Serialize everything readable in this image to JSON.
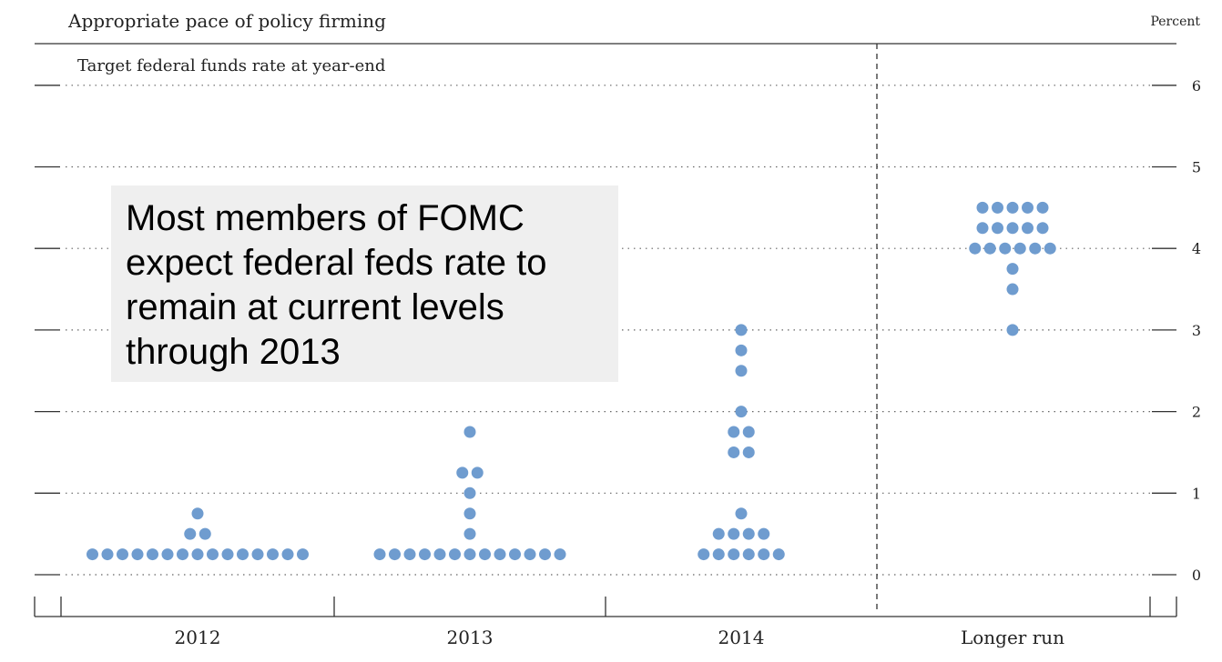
{
  "chart_data": {
    "type": "scatter",
    "title": "Appropriate pace of policy firming",
    "subtitle": "Target federal funds rate at year-end",
    "ylabel": "Percent",
    "ylim": [
      0,
      6.5
    ],
    "yticks": [
      "0",
      "1",
      "2",
      "3",
      "4",
      "5",
      "6"
    ],
    "categories": [
      "2012",
      "2013",
      "2014",
      "Longer run"
    ],
    "grid": true,
    "dot_color": "#6f9ccf",
    "series": [
      {
        "category": "2012",
        "points": [
          {
            "y": 0.25,
            "count": 15
          },
          {
            "y": 0.5,
            "count": 2
          },
          {
            "y": 0.75,
            "count": 1
          }
        ]
      },
      {
        "category": "2013",
        "points": [
          {
            "y": 0.25,
            "count": 13
          },
          {
            "y": 0.5,
            "count": 1
          },
          {
            "y": 0.75,
            "count": 1
          },
          {
            "y": 1.0,
            "count": 1
          },
          {
            "y": 1.25,
            "count": 2
          },
          {
            "y": 1.75,
            "count": 1
          }
        ]
      },
      {
        "category": "2014",
        "points": [
          {
            "y": 0.25,
            "count": 6
          },
          {
            "y": 0.5,
            "count": 4
          },
          {
            "y": 0.75,
            "count": 1
          },
          {
            "y": 1.5,
            "count": 2
          },
          {
            "y": 1.75,
            "count": 2
          },
          {
            "y": 2.0,
            "count": 1
          },
          {
            "y": 2.5,
            "count": 1
          },
          {
            "y": 2.75,
            "count": 1
          },
          {
            "y": 3.0,
            "count": 1
          }
        ]
      },
      {
        "category": "Longer run",
        "points": [
          {
            "y": 3.0,
            "count": 1
          },
          {
            "y": 3.5,
            "count": 1
          },
          {
            "y": 3.75,
            "count": 1
          },
          {
            "y": 4.0,
            "count": 6
          },
          {
            "y": 4.25,
            "count": 5
          },
          {
            "y": 4.5,
            "count": 5
          }
        ]
      }
    ]
  },
  "callout": {
    "text": "Most members of FOMC\nexpect federal feds rate to\nremain at current levels\nthrough 2013"
  }
}
